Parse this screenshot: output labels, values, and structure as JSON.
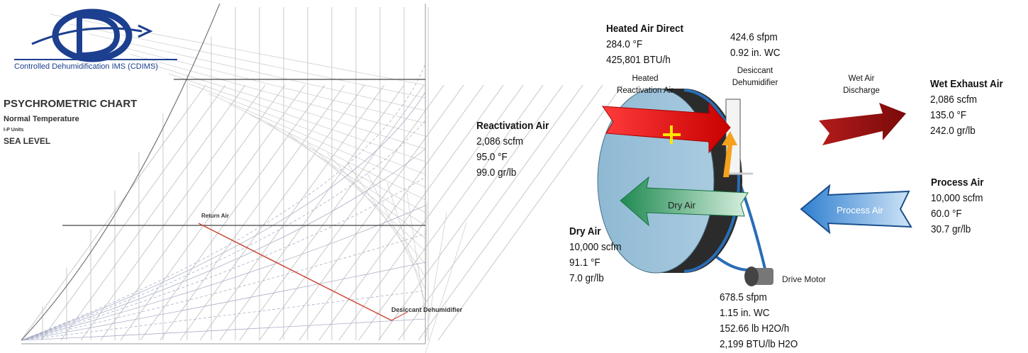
{
  "logo": {
    "text": "Controlled Dehumidification IMS (CDIMS)"
  },
  "chart": {
    "title": "PSYCHROMETRIC CHART",
    "subtitle": "Normal Temperature",
    "units": "I-P Units",
    "elevation": "SEA LEVEL",
    "points": [
      "Return Air",
      "Desiccant Dehumidifier"
    ]
  },
  "diagram": {
    "heated_air_direct": {
      "title": "Heated Air Direct",
      "lines": [
        "284.0 °F",
        "425,801 BTU/h"
      ]
    },
    "reactivation_face": {
      "lines": [
        "424.6 sfpm",
        "0.92 in. WC"
      ]
    },
    "heated_reactivation_label": [
      "Heated",
      "Reactivation Air"
    ],
    "wheel_label": [
      "Desiccant",
      "Dehumidifier"
    ],
    "wet_discharge_label": [
      "Wet Air",
      "Discharge"
    ],
    "wet_exhaust_air": {
      "title": "Wet Exhaust Air",
      "lines": [
        "2,086 scfm",
        "135.0 °F",
        "242.0 gr/lb"
      ]
    },
    "reactivation_air": {
      "title": "Reactivation Air",
      "lines": [
        "2,086 scfm",
        "95.0 °F",
        "99.0 gr/lb"
      ]
    },
    "process_air": {
      "title": "Process Air",
      "lines": [
        "10,000 scfm",
        "60.0 °F",
        "30.7 gr/lb"
      ]
    },
    "dry_air": {
      "title": "Dry Air",
      "lines": [
        "10,000 scfm",
        "91.1 °F",
        "7.0 gr/lb"
      ]
    },
    "dry_air_arrow": "Dry Air",
    "process_air_arrow": "Process Air",
    "drive_motor": "Drive Motor",
    "process_face": {
      "lines": [
        "678.5 sfpm",
        "1.15 in. WC",
        "152.66 lb H2O/h",
        "2,199 BTU/lb H2O"
      ]
    }
  }
}
